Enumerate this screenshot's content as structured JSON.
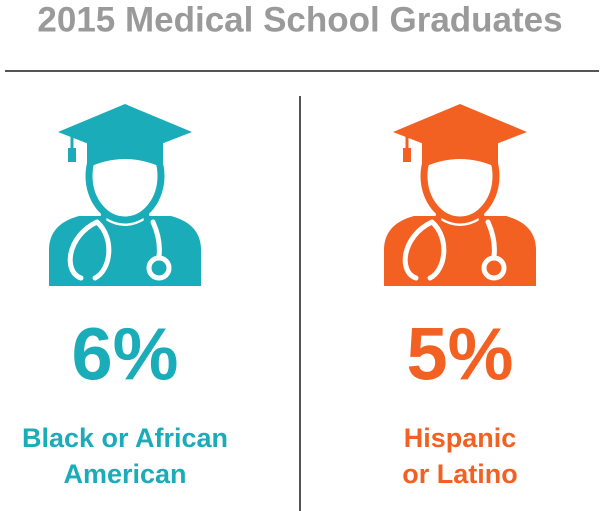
{
  "header": {
    "title": "2015 Medical School Graduates"
  },
  "panels": [
    {
      "percent": "6%",
      "label_lines": [
        "Black or African",
        "American"
      ],
      "color": "#1aacb8"
    },
    {
      "percent": "5%",
      "label_lines": [
        "Hispanic",
        "or Latino"
      ],
      "color": "#f26122"
    }
  ]
}
